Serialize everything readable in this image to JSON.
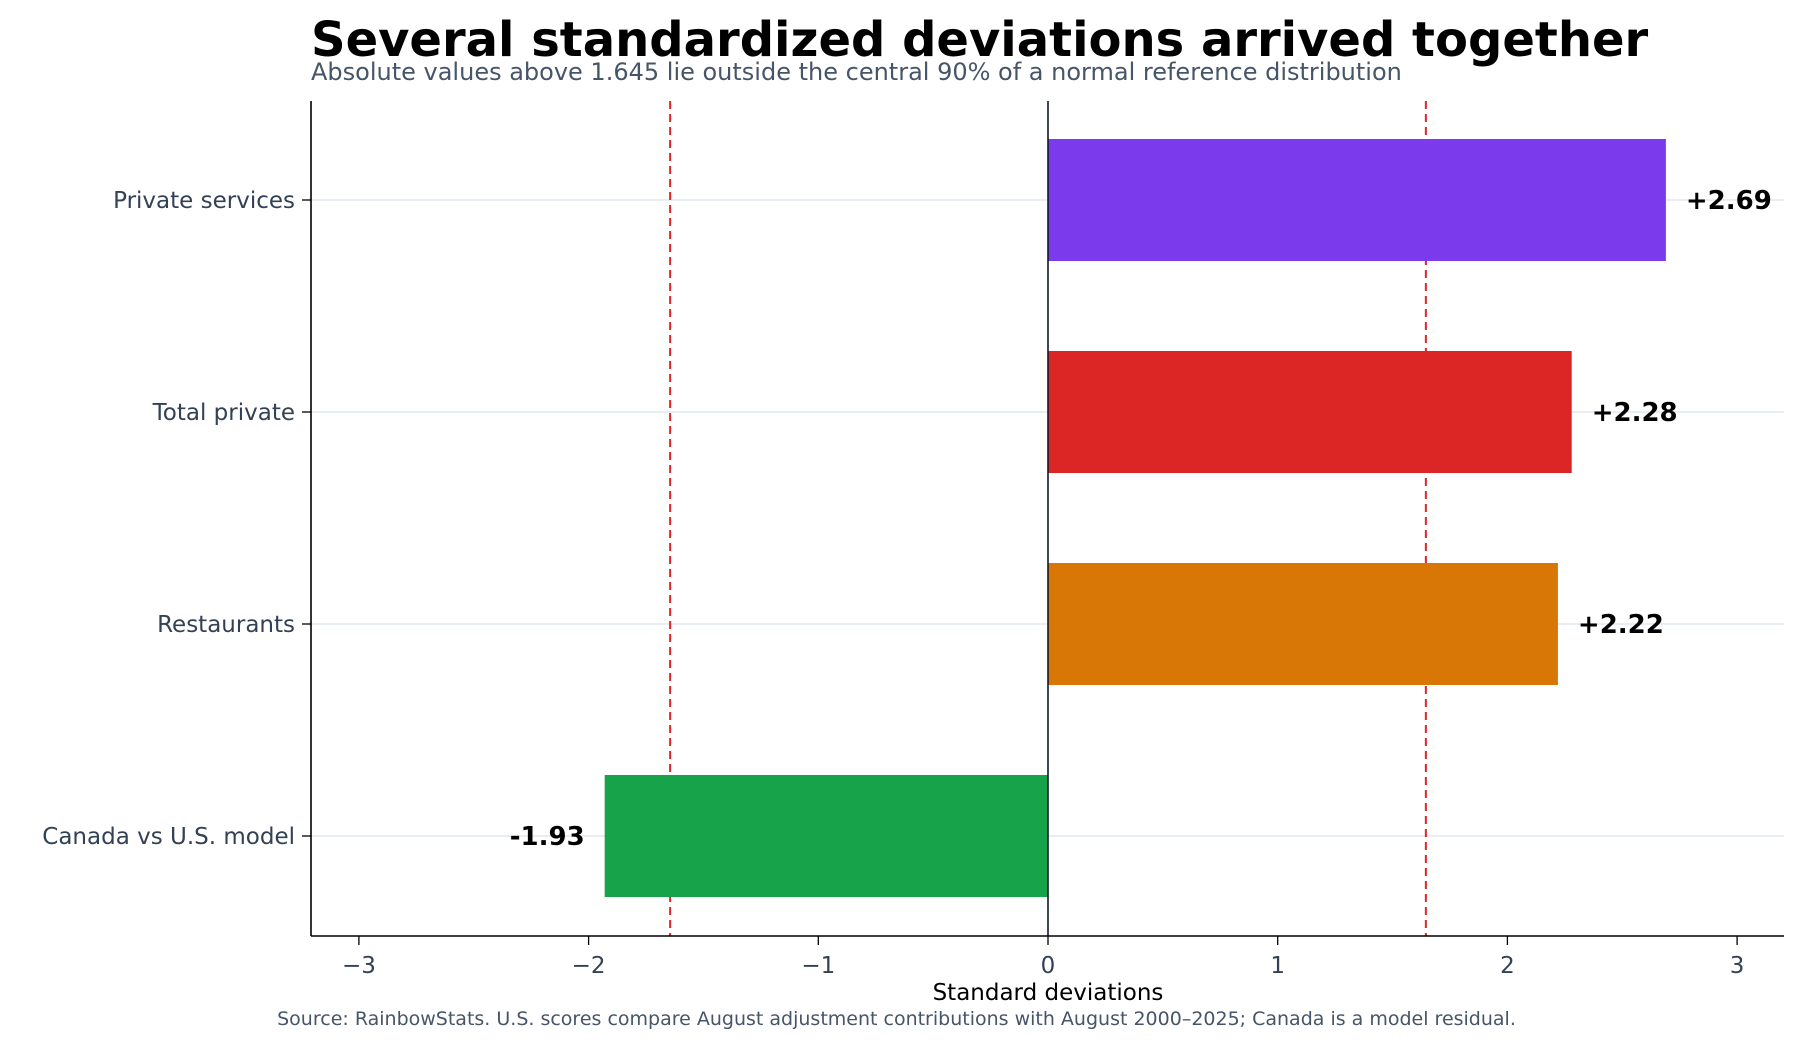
{
  "chart_data": {
    "type": "bar",
    "orientation": "horizontal",
    "title": "Several standardized deviations arrived together",
    "subtitle": "Absolute values above 1.645 lie outside the central 90% of a normal reference distribution",
    "xlabel": "Standard deviations",
    "ylabel": "",
    "source": "Source: RainbowStats. U.S. scores compare August adjustment contributions with August 2000–2025; Canada is a model residual.",
    "xlim": [
      -3.2,
      3.2
    ],
    "xticks": [
      -3,
      -2,
      -1,
      0,
      1,
      2,
      3
    ],
    "xtick_labels": [
      "−3",
      "−2",
      "−1",
      "0",
      "1",
      "2",
      "3"
    ],
    "categories": [
      "Private services",
      "Total private",
      "Restaurants",
      "Canada vs U.S. model"
    ],
    "values": [
      2.69,
      2.28,
      2.22,
      -1.93
    ],
    "value_labels": [
      "+2.69",
      "+2.28",
      "+2.22",
      "-1.93"
    ],
    "bar_colors": [
      "#7c3aed",
      "#dc2626",
      "#d97706",
      "#16a34a"
    ],
    "reference_lines": [
      -1.645,
      1.645
    ],
    "reference_line_color": "#dc2626",
    "grid": "horizontal",
    "legend": "none"
  }
}
